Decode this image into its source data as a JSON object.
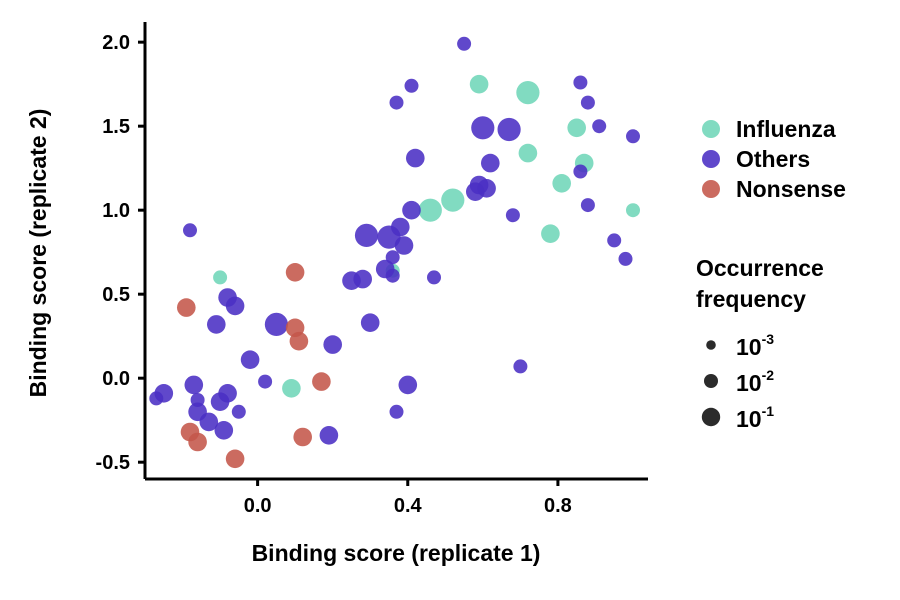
{
  "chart_data": {
    "type": "scatter",
    "xlabel": "Binding score (replicate 1)",
    "ylabel": "Binding score (replicate 2)",
    "xlim": [
      -0.3,
      1.04
    ],
    "ylim": [
      -0.6,
      2.12
    ],
    "x_ticks": [
      {
        "value": 0.0,
        "label": "0.0"
      },
      {
        "value": 0.4,
        "label": "0.4"
      },
      {
        "value": 0.8,
        "label": "0.8"
      }
    ],
    "y_ticks": [
      {
        "value": -0.5,
        "label": "-0.5"
      },
      {
        "value": 0.0,
        "label": "0.0"
      },
      {
        "value": 0.5,
        "label": "0.5"
      },
      {
        "value": 1.0,
        "label": "1.0"
      },
      {
        "value": 1.5,
        "label": "1.5"
      },
      {
        "value": 2.0,
        "label": "2.0"
      }
    ],
    "grid": false,
    "legend_position": "right",
    "colors": {
      "Influenza": "#6fd6b8",
      "Others": "#4a2fc4",
      "Nonsense": "#c4564a"
    },
    "series": [
      {
        "name": "Influenza",
        "color": "#6fd6b8",
        "points": [
          {
            "x": -0.1,
            "y": 0.6,
            "f": 0.001
          },
          {
            "x": 0.09,
            "y": -0.06,
            "f": 0.01
          },
          {
            "x": 0.36,
            "y": 0.64,
            "f": 0.001
          },
          {
            "x": 0.46,
            "y": 1.0,
            "f": 0.1
          },
          {
            "x": 0.52,
            "y": 1.06,
            "f": 0.1
          },
          {
            "x": 0.59,
            "y": 1.75,
            "f": 0.01
          },
          {
            "x": 0.72,
            "y": 1.7,
            "f": 0.1
          },
          {
            "x": 0.72,
            "y": 1.34,
            "f": 0.01
          },
          {
            "x": 0.78,
            "y": 0.86,
            "f": 0.01
          },
          {
            "x": 0.81,
            "y": 1.16,
            "f": 0.01
          },
          {
            "x": 0.85,
            "y": 1.49,
            "f": 0.01
          },
          {
            "x": 0.87,
            "y": 1.28,
            "f": 0.01
          },
          {
            "x": 1.0,
            "y": 1.0,
            "f": 0.001
          }
        ]
      },
      {
        "name": "Others",
        "color": "#4a2fc4",
        "points": [
          {
            "x": -0.27,
            "y": -0.12,
            "f": 0.001
          },
          {
            "x": -0.25,
            "y": -0.09,
            "f": 0.01
          },
          {
            "x": -0.18,
            "y": 0.88,
            "f": 0.001
          },
          {
            "x": -0.17,
            "y": -0.04,
            "f": 0.01
          },
          {
            "x": -0.16,
            "y": -0.13,
            "f": 0.001
          },
          {
            "x": -0.16,
            "y": -0.2,
            "f": 0.01
          },
          {
            "x": -0.13,
            "y": -0.26,
            "f": 0.01
          },
          {
            "x": -0.11,
            "y": 0.32,
            "f": 0.01
          },
          {
            "x": -0.1,
            "y": -0.14,
            "f": 0.01
          },
          {
            "x": -0.09,
            "y": -0.31,
            "f": 0.01
          },
          {
            "x": -0.08,
            "y": 0.48,
            "f": 0.01
          },
          {
            "x": -0.08,
            "y": -0.09,
            "f": 0.01
          },
          {
            "x": -0.06,
            "y": 0.43,
            "f": 0.01
          },
          {
            "x": -0.05,
            "y": -0.2,
            "f": 0.001
          },
          {
            "x": -0.02,
            "y": 0.11,
            "f": 0.01
          },
          {
            "x": 0.02,
            "y": -0.02,
            "f": 0.001
          },
          {
            "x": 0.05,
            "y": 0.32,
            "f": 0.1
          },
          {
            "x": 0.19,
            "y": -0.34,
            "f": 0.01
          },
          {
            "x": 0.2,
            "y": 0.2,
            "f": 0.01
          },
          {
            "x": 0.25,
            "y": 0.58,
            "f": 0.01
          },
          {
            "x": 0.28,
            "y": 0.59,
            "f": 0.01
          },
          {
            "x": 0.29,
            "y": 0.85,
            "f": 0.1
          },
          {
            "x": 0.3,
            "y": 0.33,
            "f": 0.01
          },
          {
            "x": 0.34,
            "y": 0.65,
            "f": 0.01
          },
          {
            "x": 0.35,
            "y": 0.84,
            "f": 0.1
          },
          {
            "x": 0.36,
            "y": 0.72,
            "f": 0.001
          },
          {
            "x": 0.36,
            "y": 0.61,
            "f": 0.001
          },
          {
            "x": 0.37,
            "y": 1.64,
            "f": 0.001
          },
          {
            "x": 0.37,
            "y": -0.2,
            "f": 0.001
          },
          {
            "x": 0.38,
            "y": 0.9,
            "f": 0.01
          },
          {
            "x": 0.39,
            "y": 0.79,
            "f": 0.01
          },
          {
            "x": 0.4,
            "y": -0.04,
            "f": 0.01
          },
          {
            "x": 0.41,
            "y": 1.0,
            "f": 0.01
          },
          {
            "x": 0.41,
            "y": 1.74,
            "f": 0.001
          },
          {
            "x": 0.42,
            "y": 1.31,
            "f": 0.01
          },
          {
            "x": 0.47,
            "y": 0.6,
            "f": 0.001
          },
          {
            "x": 0.55,
            "y": 1.99,
            "f": 0.001
          },
          {
            "x": 0.58,
            "y": 1.11,
            "f": 0.01
          },
          {
            "x": 0.59,
            "y": 1.15,
            "f": 0.01
          },
          {
            "x": 0.6,
            "y": 1.49,
            "f": 0.1
          },
          {
            "x": 0.61,
            "y": 1.13,
            "f": 0.01
          },
          {
            "x": 0.62,
            "y": 1.28,
            "f": 0.01
          },
          {
            "x": 0.67,
            "y": 1.48,
            "f": 0.1
          },
          {
            "x": 0.68,
            "y": 0.97,
            "f": 0.001
          },
          {
            "x": 0.7,
            "y": 0.07,
            "f": 0.001
          },
          {
            "x": 0.86,
            "y": 1.76,
            "f": 0.001
          },
          {
            "x": 0.86,
            "y": 1.23,
            "f": 0.001
          },
          {
            "x": 0.88,
            "y": 1.64,
            "f": 0.001
          },
          {
            "x": 0.88,
            "y": 1.03,
            "f": 0.001
          },
          {
            "x": 0.91,
            "y": 1.5,
            "f": 0.001
          },
          {
            "x": 0.95,
            "y": 0.82,
            "f": 0.001
          },
          {
            "x": 0.98,
            "y": 0.71,
            "f": 0.001
          },
          {
            "x": 1.0,
            "y": 1.44,
            "f": 0.001
          }
        ]
      },
      {
        "name": "Nonsense",
        "color": "#c4564a",
        "points": [
          {
            "x": -0.19,
            "y": 0.42,
            "f": 0.01
          },
          {
            "x": -0.18,
            "y": -0.32,
            "f": 0.01
          },
          {
            "x": -0.16,
            "y": -0.38,
            "f": 0.01
          },
          {
            "x": -0.06,
            "y": -0.48,
            "f": 0.01
          },
          {
            "x": 0.1,
            "y": 0.63,
            "f": 0.01
          },
          {
            "x": 0.1,
            "y": 0.3,
            "f": 0.01
          },
          {
            "x": 0.11,
            "y": 0.22,
            "f": 0.01
          },
          {
            "x": 0.12,
            "y": -0.35,
            "f": 0.01
          },
          {
            "x": 0.17,
            "y": -0.02,
            "f": 0.01
          }
        ]
      }
    ],
    "legend": {
      "items": [
        "Influenza",
        "Others",
        "Nonsense"
      ],
      "size_title_line1": "Occurrence",
      "size_title_line2": "frequency",
      "size_items": [
        {
          "base": "10",
          "exp": "-3",
          "f": 0.001
        },
        {
          "base": "10",
          "exp": "-2",
          "f": 0.01
        },
        {
          "base": "10",
          "exp": "-1",
          "f": 0.1
        }
      ]
    }
  }
}
